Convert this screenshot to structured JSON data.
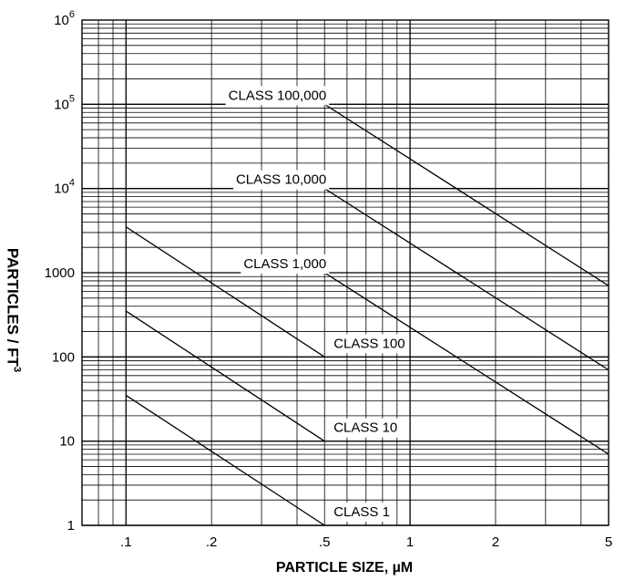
{
  "chart_data": {
    "type": "line",
    "title": "",
    "xlabel": "PARTICLE SIZE, µM",
    "ylabel": {
      "base": "PARTICLES / FT",
      "exponent": "3"
    },
    "x_scale": "log",
    "y_scale": "log",
    "xlim": [
      0.07,
      5
    ],
    "ylim": [
      1,
      1000000
    ],
    "grid": true,
    "x_ticks": [
      {
        "value": 0.1,
        "label": ".1"
      },
      {
        "value": 0.2,
        "label": ".2"
      },
      {
        "value": 0.5,
        "label": ".5"
      },
      {
        "value": 1,
        "label": "1"
      },
      {
        "value": 2,
        "label": "2"
      },
      {
        "value": 5,
        "label": "5"
      }
    ],
    "y_ticks": [
      {
        "value": 1,
        "label": "1"
      },
      {
        "value": 10,
        "label": "10"
      },
      {
        "value": 100,
        "label": "100"
      },
      {
        "value": 1000,
        "label": "1000"
      },
      {
        "value": 10000,
        "base": "10",
        "exp": "4"
      },
      {
        "value": 100000,
        "base": "10",
        "exp": "5"
      },
      {
        "value": 1000000,
        "base": "10",
        "exp": "6"
      }
    ],
    "series": [
      {
        "name": "CLASS 100,000",
        "x": [
          0.5,
          5
        ],
        "y": [
          100000,
          700
        ]
      },
      {
        "name": "CLASS 10,000",
        "x": [
          0.5,
          5
        ],
        "y": [
          10000,
          70
        ]
      },
      {
        "name": "CLASS 1,000",
        "x": [
          0.5,
          5
        ],
        "y": [
          1000,
          7
        ]
      },
      {
        "name": "CLASS 100",
        "x": [
          0.1,
          0.5
        ],
        "y": [
          3500,
          100
        ]
      },
      {
        "name": "CLASS 10",
        "x": [
          0.1,
          0.5
        ],
        "y": [
          350,
          10
        ]
      },
      {
        "name": "CLASS 1",
        "x": [
          0.1,
          0.5
        ],
        "y": [
          35,
          1
        ]
      }
    ]
  }
}
